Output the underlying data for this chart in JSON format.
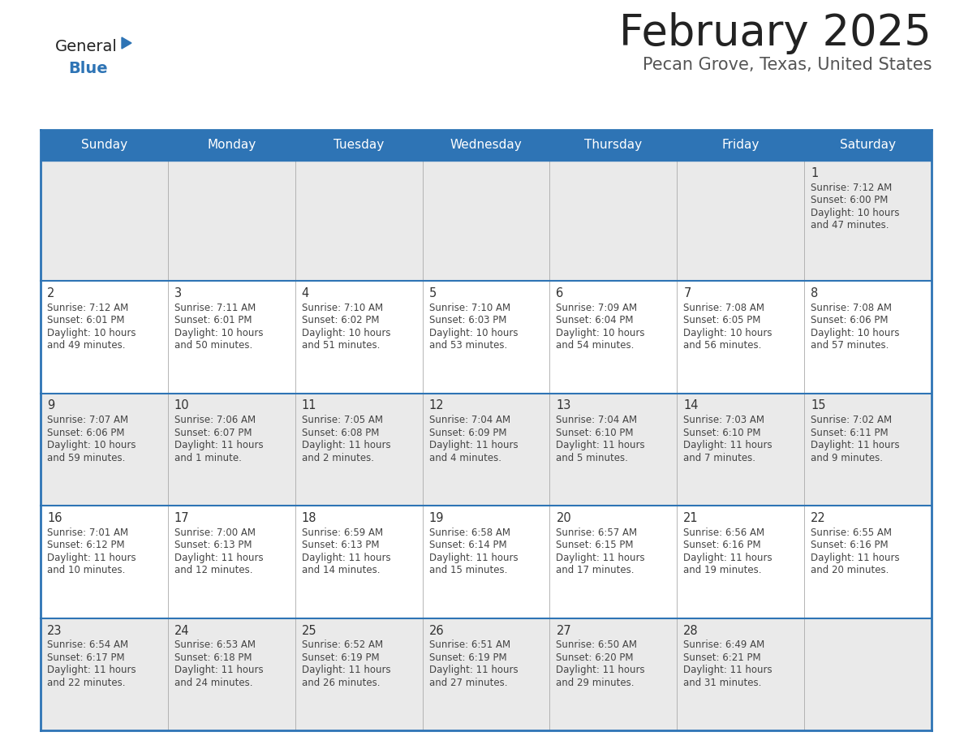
{
  "title": "February 2025",
  "subtitle": "Pecan Grove, Texas, United States",
  "header_bg": "#2E74B5",
  "header_text_color": "#FFFFFF",
  "row_bg_even": "#EAEAEA",
  "row_bg_odd": "#FFFFFF",
  "border_color": "#2E74B5",
  "sep_color": "#AAAAAA",
  "day_headers": [
    "Sunday",
    "Monday",
    "Tuesday",
    "Wednesday",
    "Thursday",
    "Friday",
    "Saturday"
  ],
  "title_color": "#222222",
  "subtitle_color": "#555555",
  "day_num_color": "#333333",
  "cell_text_color": "#444444",
  "logo_general_color": "#222222",
  "logo_blue_color": "#2E74B5",
  "logo_triangle_color": "#2E74B5",
  "days": [
    {
      "day": 1,
      "col": 6,
      "row": 0,
      "sunrise": "7:12 AM",
      "sunset": "6:00 PM",
      "daylight": "10 hours and 47 minutes."
    },
    {
      "day": 2,
      "col": 0,
      "row": 1,
      "sunrise": "7:12 AM",
      "sunset": "6:01 PM",
      "daylight": "10 hours and 49 minutes."
    },
    {
      "day": 3,
      "col": 1,
      "row": 1,
      "sunrise": "7:11 AM",
      "sunset": "6:01 PM",
      "daylight": "10 hours and 50 minutes."
    },
    {
      "day": 4,
      "col": 2,
      "row": 1,
      "sunrise": "7:10 AM",
      "sunset": "6:02 PM",
      "daylight": "10 hours and 51 minutes."
    },
    {
      "day": 5,
      "col": 3,
      "row": 1,
      "sunrise": "7:10 AM",
      "sunset": "6:03 PM",
      "daylight": "10 hours and 53 minutes."
    },
    {
      "day": 6,
      "col": 4,
      "row": 1,
      "sunrise": "7:09 AM",
      "sunset": "6:04 PM",
      "daylight": "10 hours and 54 minutes."
    },
    {
      "day": 7,
      "col": 5,
      "row": 1,
      "sunrise": "7:08 AM",
      "sunset": "6:05 PM",
      "daylight": "10 hours and 56 minutes."
    },
    {
      "day": 8,
      "col": 6,
      "row": 1,
      "sunrise": "7:08 AM",
      "sunset": "6:06 PM",
      "daylight": "10 hours and 57 minutes."
    },
    {
      "day": 9,
      "col": 0,
      "row": 2,
      "sunrise": "7:07 AM",
      "sunset": "6:06 PM",
      "daylight": "10 hours and 59 minutes."
    },
    {
      "day": 10,
      "col": 1,
      "row": 2,
      "sunrise": "7:06 AM",
      "sunset": "6:07 PM",
      "daylight": "11 hours and 1 minute."
    },
    {
      "day": 11,
      "col": 2,
      "row": 2,
      "sunrise": "7:05 AM",
      "sunset": "6:08 PM",
      "daylight": "11 hours and 2 minutes."
    },
    {
      "day": 12,
      "col": 3,
      "row": 2,
      "sunrise": "7:04 AM",
      "sunset": "6:09 PM",
      "daylight": "11 hours and 4 minutes."
    },
    {
      "day": 13,
      "col": 4,
      "row": 2,
      "sunrise": "7:04 AM",
      "sunset": "6:10 PM",
      "daylight": "11 hours and 5 minutes."
    },
    {
      "day": 14,
      "col": 5,
      "row": 2,
      "sunrise": "7:03 AM",
      "sunset": "6:10 PM",
      "daylight": "11 hours and 7 minutes."
    },
    {
      "day": 15,
      "col": 6,
      "row": 2,
      "sunrise": "7:02 AM",
      "sunset": "6:11 PM",
      "daylight": "11 hours and 9 minutes."
    },
    {
      "day": 16,
      "col": 0,
      "row": 3,
      "sunrise": "7:01 AM",
      "sunset": "6:12 PM",
      "daylight": "11 hours and 10 minutes."
    },
    {
      "day": 17,
      "col": 1,
      "row": 3,
      "sunrise": "7:00 AM",
      "sunset": "6:13 PM",
      "daylight": "11 hours and 12 minutes."
    },
    {
      "day": 18,
      "col": 2,
      "row": 3,
      "sunrise": "6:59 AM",
      "sunset": "6:13 PM",
      "daylight": "11 hours and 14 minutes."
    },
    {
      "day": 19,
      "col": 3,
      "row": 3,
      "sunrise": "6:58 AM",
      "sunset": "6:14 PM",
      "daylight": "11 hours and 15 minutes."
    },
    {
      "day": 20,
      "col": 4,
      "row": 3,
      "sunrise": "6:57 AM",
      "sunset": "6:15 PM",
      "daylight": "11 hours and 17 minutes."
    },
    {
      "day": 21,
      "col": 5,
      "row": 3,
      "sunrise": "6:56 AM",
      "sunset": "6:16 PM",
      "daylight": "11 hours and 19 minutes."
    },
    {
      "day": 22,
      "col": 6,
      "row": 3,
      "sunrise": "6:55 AM",
      "sunset": "6:16 PM",
      "daylight": "11 hours and 20 minutes."
    },
    {
      "day": 23,
      "col": 0,
      "row": 4,
      "sunrise": "6:54 AM",
      "sunset": "6:17 PM",
      "daylight": "11 hours and 22 minutes."
    },
    {
      "day": 24,
      "col": 1,
      "row": 4,
      "sunrise": "6:53 AM",
      "sunset": "6:18 PM",
      "daylight": "11 hours and 24 minutes."
    },
    {
      "day": 25,
      "col": 2,
      "row": 4,
      "sunrise": "6:52 AM",
      "sunset": "6:19 PM",
      "daylight": "11 hours and 26 minutes."
    },
    {
      "day": 26,
      "col": 3,
      "row": 4,
      "sunrise": "6:51 AM",
      "sunset": "6:19 PM",
      "daylight": "11 hours and 27 minutes."
    },
    {
      "day": 27,
      "col": 4,
      "row": 4,
      "sunrise": "6:50 AM",
      "sunset": "6:20 PM",
      "daylight": "11 hours and 29 minutes."
    },
    {
      "day": 28,
      "col": 5,
      "row": 4,
      "sunrise": "6:49 AM",
      "sunset": "6:21 PM",
      "daylight": "11 hours and 31 minutes."
    }
  ]
}
